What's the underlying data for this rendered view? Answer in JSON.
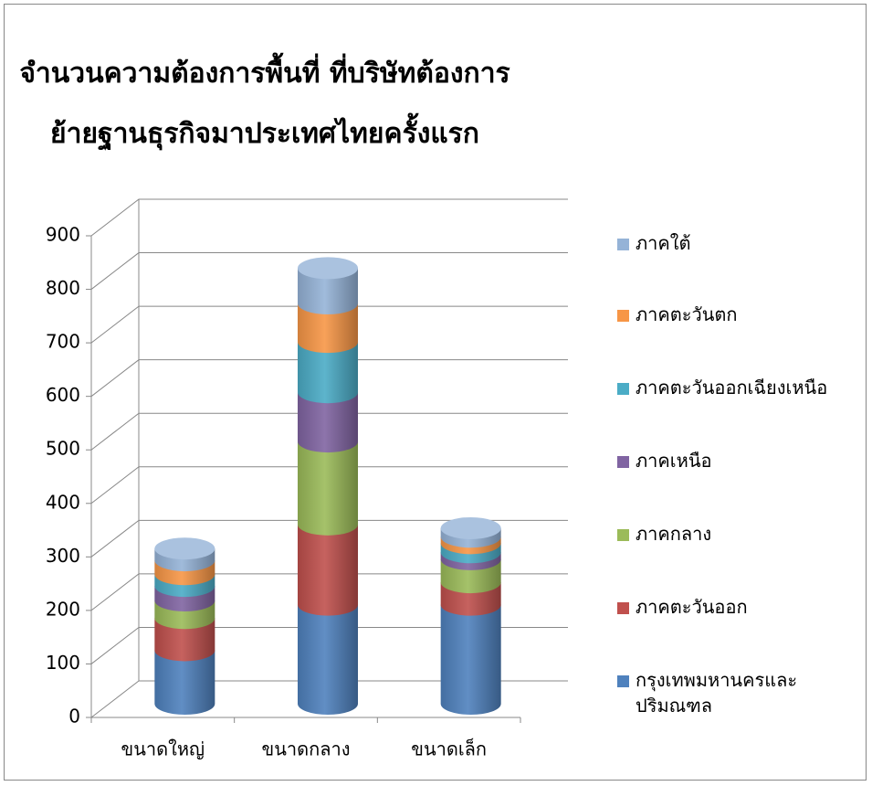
{
  "chart_data": {
    "type": "bar",
    "stacked": true,
    "title": "จำนวนความต้องการพื้นที่ ที่บริษัทต้องการย้ายฐานธุรกิจมาประเทศไทยครั้งแรก",
    "categories": [
      "ขนาดใหญ่",
      "ขนาดกลาง",
      "ขนาดเล็ก"
    ],
    "series": [
      {
        "name": "กรุงเทพมหานครและปริมณฑล",
        "color": "#4f81bd",
        "values": [
          100,
          185,
          185
        ]
      },
      {
        "name": "ภาคตะวันออก",
        "color": "#c0504d",
        "values": [
          60,
          150,
          42
        ]
      },
      {
        "name": "ภาคกลาง",
        "color": "#9bbb59",
        "values": [
          33,
          155,
          43
        ]
      },
      {
        "name": "ภาคเหนือ",
        "color": "#8064a2",
        "values": [
          27,
          92,
          13
        ]
      },
      {
        "name": "ภาคตะวันออกเฉียงเหนือ",
        "color": "#4bacc6",
        "values": [
          22,
          94,
          17
        ]
      },
      {
        "name": "ภาคตะวันตก",
        "color": "#f79646",
        "values": [
          26,
          72,
          12
        ]
      },
      {
        "name": "ภาคใต้",
        "color": "#95b3d7",
        "values": [
          22,
          66,
          16
        ]
      }
    ],
    "ylim": [
      0,
      900
    ],
    "yticks": [
      0,
      100,
      200,
      300,
      400,
      500,
      600,
      700,
      800,
      900
    ],
    "grid": true
  }
}
